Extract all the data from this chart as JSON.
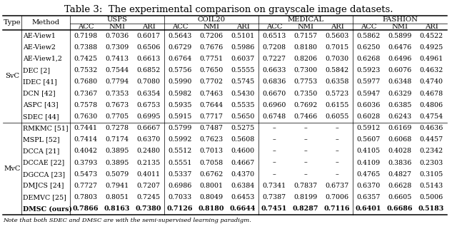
{
  "title": "Table 3:  The experimental comparison on grayscale image datasets.",
  "note": "Note that both SDEC and DMSC are with the semi-supervised learning paradigm.",
  "datasets": [
    "USPS",
    "COIL20",
    "MEDICAL",
    "FASHION"
  ],
  "metrics": [
    "ACC",
    "NMI",
    "ARI"
  ],
  "svc_rows": [
    [
      "AE-View1",
      "0.7198",
      "0.7036",
      "0.6017",
      "0.5643",
      "0.7206",
      "0.5101",
      "0.6513",
      "0.7157",
      "0.5603",
      "0.5862",
      "0.5899",
      "0.4522"
    ],
    [
      "AE-View2",
      "0.7388",
      "0.7309",
      "0.6506",
      "0.6729",
      "0.7676",
      "0.5986",
      "0.7208",
      "0.8180",
      "0.7015",
      "0.6250",
      "0.6476",
      "0.4925"
    ],
    [
      "AE-View1,2",
      "0.7425",
      "0.7413",
      "0.6613",
      "0.6764",
      "0.7751",
      "0.6037",
      "0.7227",
      "0.8206",
      "0.7030",
      "0.6268",
      "0.6496",
      "0.4961"
    ],
    [
      "DEC [2]",
      "0.7532",
      "0.7544",
      "0.6852",
      "0.5756",
      "0.7650",
      "0.5555",
      "0.6633",
      "0.7300",
      "0.5842",
      "0.5923",
      "0.6076",
      "0.4632"
    ],
    [
      "IDEC [41]",
      "0.7680",
      "0.7794",
      "0.7080",
      "0.5990",
      "0.7702",
      "0.5745",
      "0.6836",
      "0.7753",
      "0.6358",
      "0.5977",
      "0.6348",
      "0.4740"
    ],
    [
      "DCN [42]",
      "0.7367",
      "0.7353",
      "0.6354",
      "0.5982",
      "0.7463",
      "0.5430",
      "0.6670",
      "0.7350",
      "0.5723",
      "0.5947",
      "0.6329",
      "0.4678"
    ],
    [
      "ASPC [43]",
      "0.7578",
      "0.7673",
      "0.6753",
      "0.5935",
      "0.7644",
      "0.5535",
      "0.6960",
      "0.7692",
      "0.6155",
      "0.6036",
      "0.6385",
      "0.4806"
    ],
    [
      "SDEC [44]",
      "0.7630",
      "0.7705",
      "0.6995",
      "0.5915",
      "0.7717",
      "0.5650",
      "0.6748",
      "0.7466",
      "0.6055",
      "0.6028",
      "0.6243",
      "0.4754"
    ]
  ],
  "mvc_rows": [
    [
      "RMKMC [51]",
      "0.7441",
      "0.7278",
      "0.6667",
      "0.5799",
      "0.7487",
      "0.5275",
      "–",
      "–",
      "–",
      "0.5912",
      "0.6169",
      "0.4636"
    ],
    [
      "MSPL [52]",
      "0.7414",
      "0.7174",
      "0.6370",
      "0.5992",
      "0.7623",
      "0.5608",
      "–",
      "–",
      "–",
      "0.5607",
      "0.6068",
      "0.4457"
    ],
    [
      "DCCA [21]",
      "0.4042",
      "0.3895",
      "0.2480",
      "0.5512",
      "0.7013",
      "0.4600",
      "–",
      "–",
      "–",
      "0.4105",
      "0.4028",
      "0.2342"
    ],
    [
      "DCCAE [22]",
      "0.3793",
      "0.3895",
      "0.2135",
      "0.5551",
      "0.7058",
      "0.4667",
      "–",
      "–",
      "–",
      "0.4109",
      "0.3836",
      "0.2303"
    ],
    [
      "DGCCA [23]",
      "0.5473",
      "0.5079",
      "0.4011",
      "0.5337",
      "0.6762",
      "0.4370",
      "–",
      "–",
      "–",
      "0.4765",
      "0.4827",
      "0.3105"
    ],
    [
      "DMJCS [24]",
      "0.7727",
      "0.7941",
      "0.7207",
      "0.6986",
      "0.8001",
      "0.6384",
      "0.7341",
      "0.7837",
      "0.6737",
      "0.6370",
      "0.6628",
      "0.5143"
    ],
    [
      "DEMVC [25]",
      "0.7803",
      "0.8051",
      "0.7245",
      "0.7033",
      "0.8049",
      "0.6453",
      "0.7387",
      "0.8199",
      "0.7006",
      "0.6357",
      "0.6605",
      "0.5006"
    ],
    [
      "DMSC (ours)",
      "0.7866",
      "0.8163",
      "0.7380",
      "0.7126",
      "0.8180",
      "0.6644",
      "0.7451",
      "0.8287",
      "0.7116",
      "0.6401",
      "0.6686",
      "0.5183"
    ]
  ],
  "bold_row": "DMSC (ours)",
  "title_fontsize": 9.5,
  "header_fontsize": 7.2,
  "cell_fontsize": 6.8,
  "note_fontsize": 6.0
}
